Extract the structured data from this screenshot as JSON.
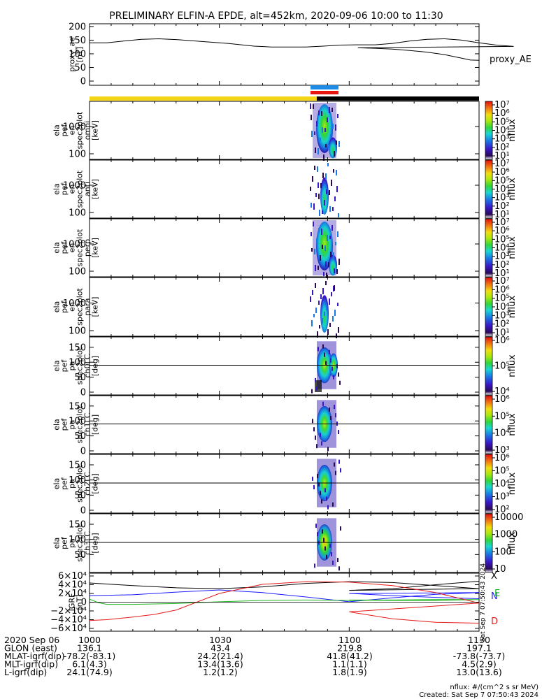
{
  "title": "PRELIMINARY ELFIN-A EPDE, alt=452km, 2020-09-06 10:00 to 11:30",
  "time_ticks": [
    "1000",
    "1030",
    "1100",
    "1130"
  ],
  "colors": {
    "ae_line": "#000000",
    "bar_yellow": "#f5d315",
    "bar_black": "#000000",
    "bar_blue": "#1e8be6",
    "bar_red": "#e8140f",
    "grf_x": "#000000",
    "grf_n": "#1a1aff",
    "grf_e": "#1db51d",
    "grf_d": "#e41a1a"
  },
  "chart_data": [
    {
      "id": "proxy_ae",
      "type": "line",
      "ylabel_lines": [
        "proxy_ae",
        "[nT]"
      ],
      "yticks": [
        "200",
        "150",
        "100",
        "50",
        "0"
      ],
      "ylim": [
        0,
        210
      ],
      "xlim": [
        1000,
        1130
      ],
      "legend": "proxy_AE",
      "x": [
        1000,
        1004,
        1008,
        1012,
        1016,
        1020,
        1026,
        1032,
        1038,
        1042,
        1046,
        1050,
        1054,
        1058,
        1062,
        1066,
        1070,
        1074,
        1078,
        1082,
        1086,
        1090,
        1094,
        1098,
        1102,
        1106,
        1110,
        1114,
        1118,
        1122,
        1126,
        1128,
        1130
      ],
      "y": [
        140,
        140,
        147,
        153,
        155,
        152,
        145,
        138,
        128,
        125,
        125,
        125,
        128,
        132,
        133,
        133,
        138,
        147,
        153,
        155,
        150,
        140,
        132,
        127,
        122,
        120,
        117,
        112,
        106,
        97,
        84,
        77,
        76
      ]
    },
    {
      "id": "spec_omni",
      "type": "heatmap",
      "ylabel_lines": [
        "ela",
        "pef",
        "en",
        "spec2plot",
        "omni",
        "[keV]"
      ],
      "yticks": [
        "1000",
        "100"
      ],
      "colorbar_label": "nflux",
      "colorbar_ticks": [
        "10⁷",
        "10⁶",
        "10⁵",
        "10⁴",
        "10³",
        "10²",
        "10¹"
      ]
    },
    {
      "id": "spec_anti",
      "type": "heatmap",
      "ylabel_lines": [
        "ela",
        "pef",
        "en",
        "spec2plot",
        "anti",
        "[keV]"
      ],
      "yticks": [
        "1000",
        "100"
      ],
      "colorbar_label": "nflux",
      "colorbar_ticks": [
        "10⁷",
        "10⁶",
        "10⁵",
        "10⁴",
        "10³",
        "10²",
        "10¹"
      ]
    },
    {
      "id": "spec_perp",
      "type": "heatmap",
      "ylabel_lines": [
        "ela",
        "pef",
        "en",
        "spec2plot",
        "perp",
        "[keV]"
      ],
      "yticks": [
        "1000",
        "100"
      ],
      "colorbar_label": "nflux",
      "colorbar_ticks": [
        "10⁷",
        "10⁶",
        "10⁵",
        "10⁴",
        "10³",
        "10²",
        "10¹"
      ]
    },
    {
      "id": "spec_para",
      "type": "heatmap",
      "ylabel_lines": [
        "ela",
        "pef",
        "en",
        "spec2plot",
        "para",
        "[keV]"
      ],
      "yticks": [
        "1000",
        "100"
      ],
      "colorbar_label": "nflux",
      "colorbar_ticks": [
        "10⁷",
        "10⁶",
        "10⁵",
        "10⁴",
        "10³",
        "10²",
        "10¹"
      ]
    },
    {
      "id": "pa_ch0",
      "type": "heatmap",
      "ylabel_lines": [
        "ela",
        "pef",
        "pa",
        "spec2plot",
        "ch0LC",
        "[deg]"
      ],
      "yticks": [
        "150",
        "100",
        "50",
        "0"
      ],
      "colorbar_label": "nflux",
      "colorbar_ticks": [
        "10⁶",
        "10⁵",
        "10⁴"
      ]
    },
    {
      "id": "pa_ch1",
      "type": "heatmap",
      "ylabel_lines": [
        "ela",
        "pef",
        "pa",
        "spec2plot",
        "ch1LC",
        "[deg]"
      ],
      "yticks": [
        "150",
        "100",
        "50",
        "0"
      ],
      "colorbar_label": "nflux",
      "colorbar_ticks": [
        "10⁶",
        "10⁵",
        "10⁴",
        "10³"
      ]
    },
    {
      "id": "pa_ch2",
      "type": "heatmap",
      "ylabel_lines": [
        "ela",
        "pef",
        "pa",
        "spec2plot",
        "ch2LC",
        "[deg]"
      ],
      "yticks": [
        "150",
        "100",
        "50",
        "0"
      ],
      "colorbar_label": "nflux",
      "colorbar_ticks": [
        "10⁶",
        "10⁵",
        "10⁴",
        "10³",
        "10²"
      ]
    },
    {
      "id": "pa_ch3",
      "type": "heatmap",
      "ylabel_lines": [
        "ela",
        "pef",
        "pa",
        "spec2plot",
        "ch3LC",
        "[deg]"
      ],
      "yticks": [
        "150",
        "100",
        "50"
      ],
      "colorbar_label": "nflux",
      "colorbar_ticks": [
        "10000",
        "1000",
        "100",
        "10"
      ]
    },
    {
      "id": "igrf",
      "type": "line",
      "ylabel_lines": [
        "IGRF",
        "[nT]"
      ],
      "yticks": [
        "6×10⁴",
        "4×10⁴",
        "2×10⁴",
        "0",
        "−2×10⁴",
        "−4×10⁴",
        "−6×10⁴"
      ],
      "ylim": [
        -60000,
        60000
      ],
      "xlim": [
        1000,
        1130
      ],
      "legend": [
        "X",
        "N",
        "E",
        "D"
      ],
      "series": [
        {
          "x": [
            1000,
            1010,
            1020,
            1030,
            1040,
            1050,
            1060,
            1070,
            1080,
            1090,
            1100,
            1110,
            1120,
            1130
          ],
          "y": [
            44000,
            38000,
            33000,
            31000,
            35000,
            43000,
            47000,
            45000,
            38000,
            31000,
            27000,
            31000,
            40000,
            48000
          ]
        },
        {
          "x": [
            1000,
            1010,
            1020,
            1030,
            1040,
            1050,
            1060,
            1070,
            1080,
            1090,
            1100,
            1110,
            1120,
            1130
          ],
          "y": [
            15000,
            17000,
            23000,
            28000,
            22000,
            12000,
            1000,
            10000,
            18000,
            22000,
            20000,
            15000,
            11000,
            8000
          ]
        },
        {
          "x": [
            1000,
            1002,
            1004,
            1010,
            1020,
            1030,
            1040,
            1050,
            1060,
            1070,
            1080,
            1090,
            1100,
            1110,
            1120,
            1130
          ],
          "y": [
            7000,
            -1000,
            -5000,
            -5000,
            -3000,
            1000,
            4000,
            5000,
            4000,
            5000,
            6000,
            6000,
            5000,
            4000,
            4000,
            6000
          ]
        },
        {
          "x": [
            1000,
            1004,
            1010,
            1015,
            1020,
            1030,
            1040,
            1050,
            1060,
            1070,
            1080,
            1090,
            1100,
            1110,
            1120,
            1130
          ],
          "y": [
            -42000,
            -40000,
            -34000,
            -28000,
            -18000,
            20000,
            41000,
            47000,
            46000,
            38000,
            22000,
            -2000,
            -22000,
            -38000,
            -46000,
            -48000
          ]
        }
      ]
    }
  ],
  "footer": {
    "rows": [
      {
        "label": "2020 Sep 06",
        "values": [
          "1000",
          "1030",
          "1100",
          "1130"
        ]
      },
      {
        "label": "GLON (east)",
        "values": [
          "136.1",
          "43.4",
          "219.8",
          "197.1"
        ]
      },
      {
        "label": "MLAT-igrf(dip)",
        "values": [
          "-78.2(-83.1)",
          "24.2(21.4)",
          "41.8(41.2)",
          "-73.8(-73.7)"
        ]
      },
      {
        "label": "MLT-igrf(dip)",
        "values": [
          "6.1(4.3)",
          "13.4(13.6)",
          "1.1(1.1)",
          "4.5(2.9)"
        ]
      },
      {
        "label": "L-igrf(dip)",
        "values": [
          "24.1(74.9)",
          "1.2(1.2)",
          "1.8(1.9)",
          "13.0(13.6)"
        ]
      }
    ],
    "units_note": "nflux: #/(cm^2 s sr MeV)",
    "created_note": "Created: Sat Sep  7 07:50:43 2024",
    "side_stamp": "Sat Sep  7 07:50:43 2024"
  }
}
